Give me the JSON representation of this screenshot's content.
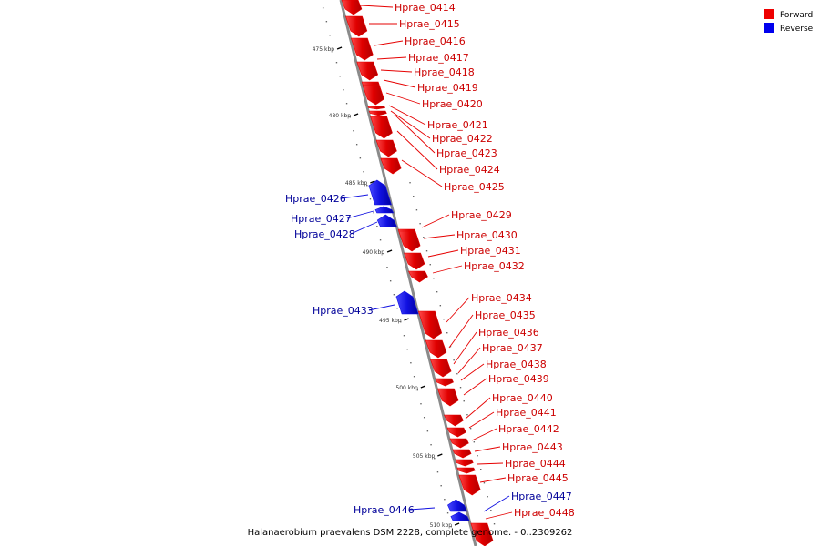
{
  "caption": "Halanaerobium praevalens DSM 2228, complete genome. - 0..2309262",
  "legend": {
    "forward": {
      "label": "Forward",
      "color": "#ee0000"
    },
    "reverse": {
      "label": "Reverse",
      "color": "#0000ee"
    }
  },
  "colors": {
    "forward_gene": "#e60000",
    "reverse_gene": "#1010e0",
    "axis": "#8a8a8a"
  },
  "ticks": [
    "475 kbp",
    "480 kbp",
    "485 kbp",
    "490 kbp",
    "495 kbp",
    "500 kbp",
    "505 kbp",
    "510 kbp"
  ],
  "genes": [
    {
      "id": "Hprae_0414",
      "strand": "forward"
    },
    {
      "id": "Hprae_0415",
      "strand": "forward"
    },
    {
      "id": "Hprae_0416",
      "strand": "forward"
    },
    {
      "id": "Hprae_0417",
      "strand": "forward"
    },
    {
      "id": "Hprae_0418",
      "strand": "forward"
    },
    {
      "id": "Hprae_0419",
      "strand": "forward"
    },
    {
      "id": "Hprae_0420",
      "strand": "forward"
    },
    {
      "id": "Hprae_0421",
      "strand": "forward"
    },
    {
      "id": "Hprae_0422",
      "strand": "forward"
    },
    {
      "id": "Hprae_0423",
      "strand": "forward"
    },
    {
      "id": "Hprae_0424",
      "strand": "forward"
    },
    {
      "id": "Hprae_0425",
      "strand": "forward"
    },
    {
      "id": "Hprae_0426",
      "strand": "reverse"
    },
    {
      "id": "Hprae_0427",
      "strand": "reverse"
    },
    {
      "id": "Hprae_0428",
      "strand": "reverse"
    },
    {
      "id": "Hprae_0429",
      "strand": "forward"
    },
    {
      "id": "Hprae_0430",
      "strand": "forward"
    },
    {
      "id": "Hprae_0431",
      "strand": "forward"
    },
    {
      "id": "Hprae_0432",
      "strand": "forward"
    },
    {
      "id": "Hprae_0433",
      "strand": "reverse"
    },
    {
      "id": "Hprae_0434",
      "strand": "forward"
    },
    {
      "id": "Hprae_0435",
      "strand": "forward"
    },
    {
      "id": "Hprae_0436",
      "strand": "forward"
    },
    {
      "id": "Hprae_0437",
      "strand": "forward"
    },
    {
      "id": "Hprae_0438",
      "strand": "forward"
    },
    {
      "id": "Hprae_0439",
      "strand": "forward"
    },
    {
      "id": "Hprae_0440",
      "strand": "forward"
    },
    {
      "id": "Hprae_0441",
      "strand": "forward"
    },
    {
      "id": "Hprae_0442",
      "strand": "forward"
    },
    {
      "id": "Hprae_0443",
      "strand": "forward"
    },
    {
      "id": "Hprae_0444",
      "strand": "forward"
    },
    {
      "id": "Hprae_0445",
      "strand": "forward"
    },
    {
      "id": "Hprae_0446",
      "strand": "reverse"
    },
    {
      "id": "Hprae_0447",
      "strand": "reverse"
    },
    {
      "id": "Hprae_0448",
      "strand": "forward"
    }
  ]
}
